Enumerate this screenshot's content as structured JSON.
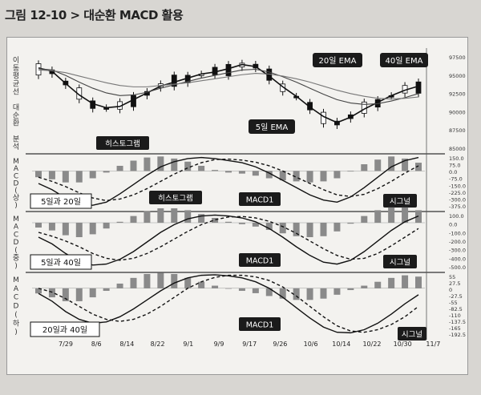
{
  "figure_title": "그림 12-10 > 대순환 MACD 활용",
  "chart_data": [
    {
      "type": "line",
      "panel": "price",
      "ylabel": "이동평균선 대순환 분석",
      "y_ticks": [
        "97500",
        "95000",
        "92500",
        "90000",
        "87500",
        "85000"
      ],
      "ylim": [
        84000,
        98500
      ],
      "annotations": [
        "20일 EMA",
        "40일 EMA",
        "5일 EMA"
      ],
      "x_labels": [
        "7/29",
        "8/6",
        "8/14",
        "8/22",
        "9/1",
        "9/9",
        "9/17",
        "9/26",
        "10/6",
        "10/14",
        "10/22",
        "10/30",
        "11/7"
      ],
      "series": [
        {
          "name": "5일 EMA",
          "values": [
            96500,
            96000,
            94200,
            92500,
            91200,
            90600,
            90800,
            91800,
            92800,
            93800,
            94400,
            95000,
            95600,
            95900,
            96400,
            97000,
            96700,
            95300,
            93700,
            92300,
            90700,
            89300,
            88400,
            89200,
            90400,
            91400,
            92400,
            93200,
            93800
          ]
        },
        {
          "name": "20일 EMA",
          "values": [
            96400,
            96200,
            95400,
            94400,
            93500,
            92800,
            92400,
            92500,
            92900,
            93500,
            94000,
            94500,
            95000,
            95400,
            95800,
            96200,
            96300,
            95900,
            95200,
            94400,
            93500,
            92600,
            91800,
            91300,
            91100,
            91200,
            91600,
            92100,
            92700
          ]
        },
        {
          "name": "40일 EMA",
          "values": [
            96200,
            96100,
            95800,
            95300,
            94800,
            94300,
            93900,
            93700,
            93700,
            93900,
            94100,
            94300,
            94600,
            94900,
            95200,
            95500,
            95700,
            95600,
            95300,
            94900,
            94400,
            93800,
            93200,
            92700,
            92300,
            92000,
            91900,
            92000,
            92200
          ]
        }
      ]
    },
    {
      "type": "line",
      "panel": "macd-upper",
      "ylabel": "MACD(상)",
      "legend_box": "5일과 20일",
      "annotations": [
        "히스토그램",
        "MACD1",
        "시그널"
      ],
      "y_ticks": [
        "150.0",
        "75.0",
        "0.0",
        "-75.0",
        "-150.0",
        "-225.0",
        "-300.0",
        "-375.0"
      ],
      "ylim": [
        -375,
        150
      ],
      "series": [
        {
          "name": "MACD1",
          "values": [
            -120,
            -180,
            -260,
            -320,
            -330,
            -300,
            -220,
            -130,
            -40,
            40,
            90,
            120,
            130,
            120,
            100,
            80,
            40,
            -20,
            -90,
            -160,
            -230,
            -280,
            -300,
            -250,
            -160,
            -60,
            40,
            100,
            130
          ]
        },
        {
          "name": "시그널",
          "values": [
            -60,
            -100,
            -150,
            -210,
            -260,
            -285,
            -270,
            -230,
            -170,
            -100,
            -30,
            30,
            80,
            110,
            115,
            105,
            85,
            50,
            0,
            -60,
            -120,
            -180,
            -230,
            -245,
            -225,
            -170,
            -100,
            -20,
            50
          ]
        }
      ],
      "histogram": [
        -60,
        -80,
        -110,
        -110,
        -70,
        -15,
        50,
        100,
        130,
        140,
        120,
        90,
        50,
        10,
        -15,
        -25,
        -45,
        -70,
        -90,
        -100,
        -110,
        -100,
        -70,
        -5,
        65,
        110,
        140,
        120,
        80
      ]
    },
    {
      "type": "line",
      "panel": "macd-middle",
      "ylabel": "MACD(중)",
      "legend_box": "5일과 40일",
      "annotations": [
        "히스토그램",
        "MACD1",
        "시그널"
      ],
      "y_ticks": [
        "100.0",
        "0.0",
        "-100.0",
        "-200.0",
        "-300.0",
        "-400.0",
        "-500.0"
      ],
      "ylim": [
        -500,
        100
      ],
      "series": [
        {
          "name": "MACD1",
          "values": [
            -150,
            -220,
            -320,
            -400,
            -440,
            -430,
            -380,
            -300,
            -200,
            -100,
            -20,
            40,
            70,
            80,
            70,
            50,
            10,
            -60,
            -150,
            -250,
            -340,
            -410,
            -430,
            -390,
            -300,
            -190,
            -80,
            10,
            70
          ]
        },
        {
          "name": "시그널",
          "values": [
            -100,
            -140,
            -190,
            -250,
            -320,
            -370,
            -390,
            -370,
            -320,
            -250,
            -170,
            -90,
            -20,
            30,
            60,
            65,
            50,
            15,
            -40,
            -110,
            -190,
            -270,
            -340,
            -380,
            -370,
            -320,
            -240,
            -150,
            -60
          ]
        }
      ],
      "histogram": [
        -50,
        -80,
        -130,
        -150,
        -120,
        -60,
        10,
        70,
        120,
        150,
        150,
        130,
        90,
        50,
        10,
        -15,
        -40,
        -75,
        -110,
        -140,
        -150,
        -140,
        -90,
        -10,
        70,
        130,
        160,
        160,
        130
      ]
    },
    {
      "type": "line",
      "panel": "macd-lower",
      "ylabel": "MACD(하)",
      "legend_box": "20일과 40일",
      "annotations": [
        "MACD1",
        "시그널"
      ],
      "y_ticks": [
        "55",
        "27.5",
        "0",
        "-27.5",
        "-55",
        "-82.5",
        "-110",
        "-137.5",
        "-165",
        "-192.5"
      ],
      "ylim": [
        -192.5,
        55
      ],
      "series": [
        {
          "name": "MACD1",
          "values": [
            -20,
            -50,
            -90,
            -120,
            -135,
            -130,
            -110,
            -80,
            -45,
            -10,
            20,
            40,
            50,
            52,
            48,
            40,
            25,
            0,
            -35,
            -75,
            -115,
            -150,
            -170,
            -172,
            -160,
            -135,
            -100,
            -60,
            -25
          ]
        },
        {
          "name": "시그널",
          "values": [
            0,
            -15,
            -40,
            -70,
            -100,
            -120,
            -128,
            -120,
            -100,
            -70,
            -35,
            0,
            25,
            42,
            50,
            50,
            44,
            30,
            5,
            -30,
            -70,
            -110,
            -145,
            -165,
            -170,
            -160,
            -140,
            -110,
            -70
          ]
        }
      ],
      "histogram": [
        -20,
        -35,
        -50,
        -50,
        -35,
        -10,
        18,
        40,
        55,
        60,
        55,
        40,
        25,
        10,
        -2,
        -10,
        -19,
        -30,
        -40,
        -45,
        -45,
        -40,
        -25,
        -7,
        10,
        25,
        40,
        50,
        45
      ]
    }
  ]
}
